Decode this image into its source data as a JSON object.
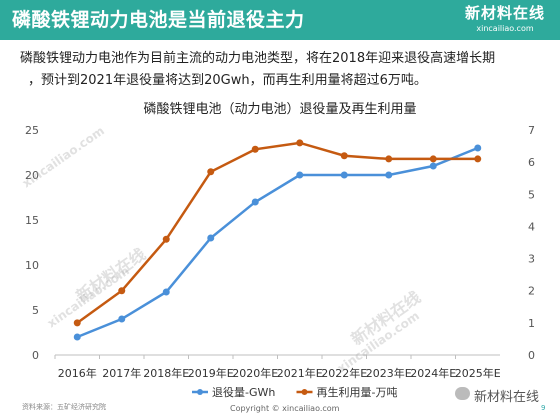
{
  "header": {
    "title": "磷酸铁锂动力电池是当前退役主力",
    "logo_text": "新材料在线",
    "logo_url": "xincailiao.com"
  },
  "description": {
    "line1": "磷酸铁锂动力电池作为目前主流的动力电池类型，将在2018年迎来退役高速增长期",
    "line2": "，预计到2021年退役量将达到20Gwh，而再生利用量将超过6万吨。"
  },
  "watermarks": [
    "新材料在线",
    "xincailiao.com"
  ],
  "footer": {
    "source": "资料来源：五矿经济研究院",
    "copyright": "Copyright © xincailiao.com",
    "brand": "新材料在线",
    "page": "9"
  },
  "colors": {
    "header_bg": "#2eaa9c",
    "series1": "#4a90d9",
    "series2": "#c55a11"
  },
  "chart_data": {
    "type": "line",
    "title": "磷酸铁锂电池（动力电池）退役量及再生利用量",
    "categories": [
      "2016年",
      "2017年",
      "2018年E",
      "2019年E",
      "2020年E",
      "2021年E",
      "2022年E",
      "2023年E",
      "2024年E",
      "2025年E"
    ],
    "series": [
      {
        "name": "退役量-GWh",
        "axis": "left",
        "values": [
          2,
          4,
          7,
          13,
          17,
          20,
          20,
          20,
          21,
          23
        ]
      },
      {
        "name": "再生利用量-万吨",
        "axis": "right",
        "values": [
          1.0,
          2.0,
          3.6,
          5.7,
          6.4,
          6.6,
          6.2,
          6.1,
          6.1,
          6.1
        ]
      }
    ],
    "y_left": {
      "min": 0,
      "max": 25,
      "ticks": [
        0,
        5,
        10,
        15,
        20,
        25
      ]
    },
    "y_right": {
      "min": 0,
      "max": 7,
      "ticks": [
        0,
        1,
        2,
        3,
        4,
        5,
        6,
        7
      ]
    },
    "grid": false,
    "legend_position": "bottom"
  }
}
